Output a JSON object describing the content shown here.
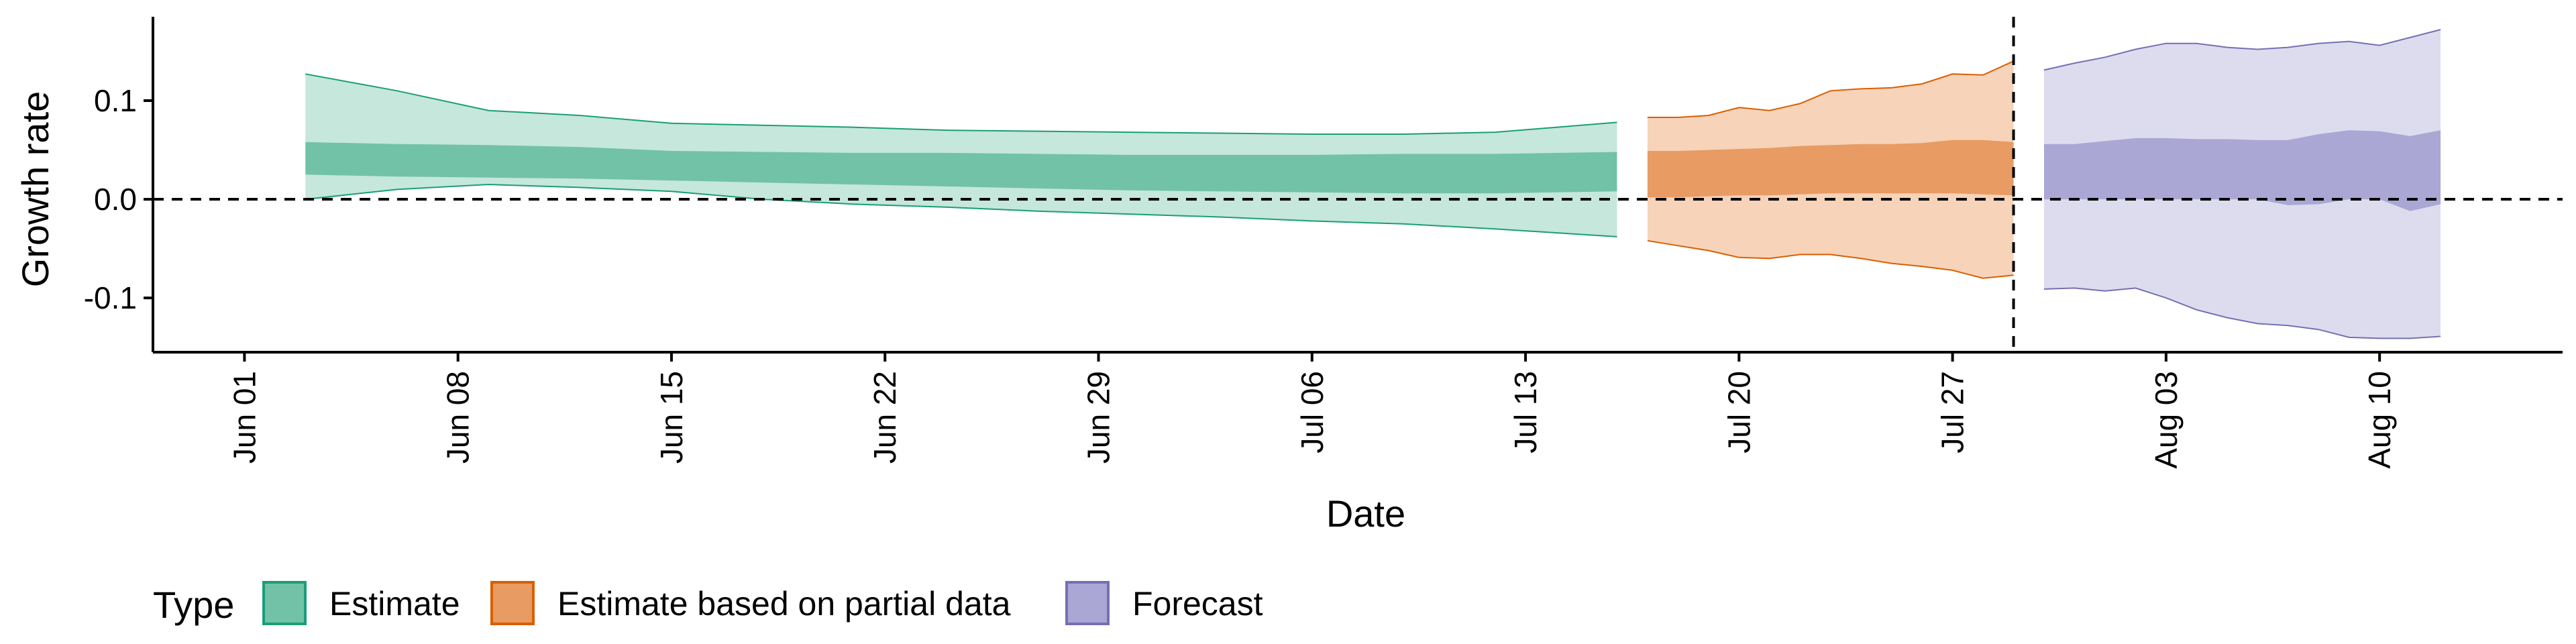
{
  "chart_data": {
    "type": "area",
    "xlabel": "Date",
    "ylabel": "Growth rate",
    "x_range": [
      "2020-05-29",
      "2020-08-16"
    ],
    "ylim": [
      -0.155,
      0.185
    ],
    "yticks": [
      -0.1,
      0.0,
      0.1
    ],
    "ytick_labels": [
      "-0.1",
      "0.0",
      "0.1"
    ],
    "xticks": [
      "2020-06-01",
      "2020-06-08",
      "2020-06-15",
      "2020-06-22",
      "2020-06-29",
      "2020-07-06",
      "2020-07-13",
      "2020-07-20",
      "2020-07-27",
      "2020-08-03",
      "2020-08-10"
    ],
    "xtick_labels": [
      "Jun 01",
      "Jun 08",
      "Jun 15",
      "Jun 22",
      "Jun 29",
      "Jul 06",
      "Jul 13",
      "Jul 20",
      "Jul 27",
      "Aug 03",
      "Aug 10"
    ],
    "reference_lines": [
      {
        "axis": "y",
        "value": 0,
        "style": "dashed"
      },
      {
        "axis": "x",
        "value": "2020-07-29",
        "style": "dashed"
      }
    ],
    "grid": false,
    "legend": {
      "title": "Type",
      "position": "bottom",
      "items": [
        {
          "label": "Estimate",
          "fill": "#72c2a8",
          "stroke": "#1b9e77"
        },
        {
          "label": "Estimate based on partial data",
          "fill": "#e89b63",
          "stroke": "#d95f02"
        },
        {
          "label": "Forecast",
          "fill": "#aba7d4",
          "stroke": "#7570b3"
        }
      ]
    },
    "series": [
      {
        "name": "Estimate",
        "outer_color": "#c5e7dc",
        "inner_color": "#72c2a8",
        "line_color": "#1b9e77",
        "x": [
          "2020-06-03",
          "2020-06-06",
          "2020-06-09",
          "2020-06-12",
          "2020-06-15",
          "2020-06-18",
          "2020-06-21",
          "2020-06-24",
          "2020-06-27",
          "2020-06-30",
          "2020-07-03",
          "2020-07-06",
          "2020-07-09",
          "2020-07-12",
          "2020-07-16"
        ],
        "outer_upper": [
          0.127,
          0.11,
          0.09,
          0.085,
          0.077,
          0.075,
          0.073,
          0.07,
          0.069,
          0.068,
          0.067,
          0.066,
          0.066,
          0.068,
          0.078
        ],
        "outer_lower": [
          0.0,
          0.01,
          0.015,
          0.012,
          0.008,
          0.0,
          -0.005,
          -0.008,
          -0.012,
          -0.015,
          -0.018,
          -0.022,
          -0.025,
          -0.03,
          -0.038
        ],
        "inner_upper": [
          0.058,
          0.056,
          0.055,
          0.053,
          0.049,
          0.048,
          0.047,
          0.047,
          0.046,
          0.045,
          0.045,
          0.045,
          0.046,
          0.046,
          0.048
        ],
        "inner_lower": [
          0.025,
          0.023,
          0.022,
          0.021,
          0.019,
          0.017,
          0.015,
          0.013,
          0.011,
          0.009,
          0.008,
          0.007,
          0.006,
          0.006,
          0.008
        ]
      },
      {
        "name": "Estimate based on partial data",
        "outer_color": "#f6d3b9",
        "inner_color": "#e89b63",
        "line_color": "#d95f02",
        "x": [
          "2020-07-17",
          "2020-07-18",
          "2020-07-19",
          "2020-07-20",
          "2020-07-21",
          "2020-07-22",
          "2020-07-23",
          "2020-07-24",
          "2020-07-25",
          "2020-07-26",
          "2020-07-27",
          "2020-07-28",
          "2020-07-29"
        ],
        "outer_upper": [
          0.083,
          0.083,
          0.085,
          0.093,
          0.09,
          0.097,
          0.11,
          0.112,
          0.113,
          0.117,
          0.127,
          0.126,
          0.14
        ],
        "outer_lower": [
          -0.042,
          -0.047,
          -0.052,
          -0.059,
          -0.06,
          -0.056,
          -0.056,
          -0.06,
          -0.065,
          -0.068,
          -0.072,
          -0.08,
          -0.077
        ],
        "inner_upper": [
          0.049,
          0.049,
          0.05,
          0.051,
          0.052,
          0.054,
          0.055,
          0.056,
          0.056,
          0.057,
          0.06,
          0.06,
          0.058
        ],
        "inner_lower": [
          0.002,
          0.002,
          0.003,
          0.004,
          0.004,
          0.005,
          0.006,
          0.006,
          0.006,
          0.006,
          0.006,
          0.005,
          0.004
        ]
      },
      {
        "name": "Forecast",
        "outer_color": "#dddcee",
        "inner_color": "#aba7d4",
        "line_color": "#7570b3",
        "x": [
          "2020-07-30",
          "2020-07-31",
          "2020-08-01",
          "2020-08-02",
          "2020-08-03",
          "2020-08-04",
          "2020-08-05",
          "2020-08-06",
          "2020-08-07",
          "2020-08-08",
          "2020-08-09",
          "2020-08-10",
          "2020-08-11",
          "2020-08-12"
        ],
        "outer_upper": [
          0.131,
          0.138,
          0.144,
          0.152,
          0.158,
          0.158,
          0.154,
          0.152,
          0.154,
          0.158,
          0.16,
          0.156,
          0.164,
          0.172
        ],
        "outer_lower": [
          -0.091,
          -0.09,
          -0.093,
          -0.09,
          -0.1,
          -0.112,
          -0.12,
          -0.126,
          -0.128,
          -0.132,
          -0.14,
          -0.141,
          -0.141,
          -0.139
        ],
        "inner_upper": [
          0.056,
          0.056,
          0.059,
          0.062,
          0.062,
          0.061,
          0.061,
          0.06,
          0.06,
          0.066,
          0.07,
          0.069,
          0.064,
          0.07
        ],
        "inner_lower": [
          0.0,
          0.0,
          0.0,
          0.0,
          0.0,
          0.0,
          0.0,
          0.0,
          -0.006,
          -0.005,
          0.0,
          0.0,
          -0.012,
          -0.005
        ]
      }
    ]
  }
}
